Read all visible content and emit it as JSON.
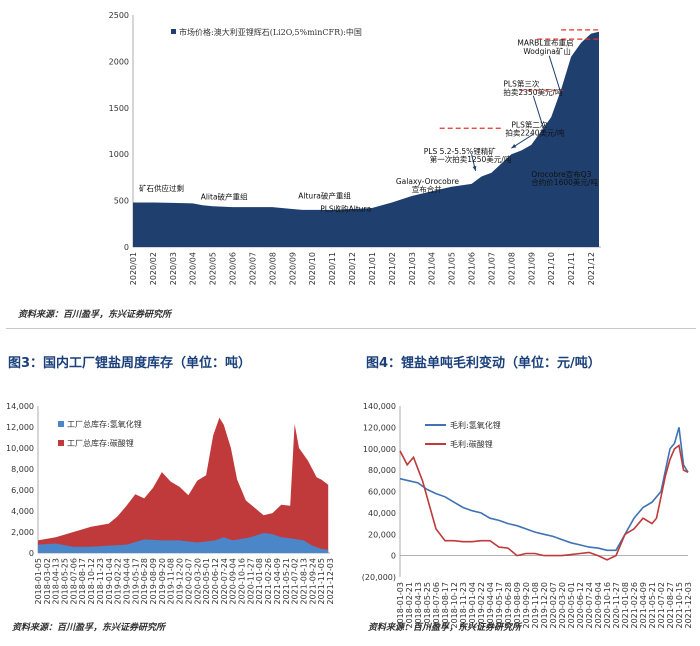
{
  "source_text": "资料来源：百川盈孚，东兴证券研究所",
  "fig3_title": "图3：国内工厂锂盐周度库存（单位：吨）",
  "fig4_title": "图4：锂盐单吨毛利变动（单位：元/吨）",
  "chart_data": [
    {
      "type": "area",
      "legend_placement": "top-left",
      "ylim": [
        0,
        2500
      ],
      "yticks": [
        0,
        500,
        1000,
        1500,
        2000,
        2500
      ],
      "categories": [
        "2020/01",
        "2020/02",
        "2020/03",
        "2020/04",
        "2020/05",
        "2020/06",
        "2020/07",
        "2020/08",
        "2020/09",
        "2020/10",
        "2020/11",
        "2020/12",
        "2021/01",
        "2021/02",
        "2021/03",
        "2021/04",
        "2021/05",
        "2021/06",
        "2021/07",
        "2021/08",
        "2021/09",
        "2021/10",
        "2021/11",
        "2021/12"
      ],
      "series": [
        {
          "name": "市场价格:澳大利亚锂辉石(Li2O,5%minCFR):中国",
          "color": "#1f3f6e",
          "x": [
            0,
            1,
            2,
            3,
            3.5,
            4,
            5,
            6,
            7,
            8,
            8.5,
            9,
            10,
            11,
            12,
            13,
            14,
            15,
            16,
            17,
            17.5,
            18,
            18.5,
            19,
            19.5,
            20,
            20.5,
            21,
            21.5,
            22,
            22.5,
            23,
            23.4
          ],
          "values": [
            480,
            480,
            475,
            470,
            450,
            440,
            430,
            430,
            430,
            410,
            400,
            400,
            400,
            410,
            420,
            480,
            550,
            600,
            650,
            680,
            760,
            800,
            900,
            1000,
            1040,
            1100,
            1250,
            1400,
            1700,
            2050,
            2200,
            2300,
            2320
          ]
        }
      ],
      "annotations": [
        {
          "text": "矿石供应过剩",
          "x": 0.3,
          "y": 605
        },
        {
          "text": "Alita破产重组",
          "x": 3.4,
          "y": 510
        },
        {
          "text": "Altura破产重组",
          "x": 8.3,
          "y": 520
        },
        {
          "text": "PLS收购Altura",
          "x": 9.4,
          "y": 380
        },
        {
          "text": "Galaxy-Orocobre",
          "x": 13.2,
          "y": 680
        },
        {
          "text": "宣布合并",
          "x": 14.0,
          "y": 590
        },
        {
          "text": "PLS 5.2-5.5%锂精矿",
          "x": 14.6,
          "y": 1000
        },
        {
          "text": "第一次拍卖1250美元/吨",
          "x": 14.9,
          "y": 915
        },
        {
          "text": "Orocobre宣布Q3",
          "x": 20.0,
          "y": 755
        },
        {
          "text": "合约价1600美元/吨",
          "x": 20.0,
          "y": 670
        },
        {
          "text": "PLS第二次",
          "x": 19.0,
          "y": 1290
        },
        {
          "text": "拍卖2240美元/吨",
          "x": 18.7,
          "y": 1200
        },
        {
          "text": "PLS第三次",
          "x": 18.6,
          "y": 1730
        },
        {
          "text": "拍卖2350美元/吨",
          "x": 18.6,
          "y": 1640
        },
        {
          "text": "MARBL宣布重启",
          "x": 19.3,
          "y": 2170
        },
        {
          "text": "Wodgina矿山",
          "x": 19.6,
          "y": 2080
        }
      ],
      "dashed_lines": [
        {
          "x": [
            15.4,
            18.5
          ],
          "y": 1280
        },
        {
          "x": [
            19.4,
            21.6
          ],
          "y": 1690
        },
        {
          "x": [
            20.3,
            23.5
          ],
          "y": 2240
        },
        {
          "x": [
            21.5,
            23.5
          ],
          "y": 2340
        }
      ],
      "arrows": [
        {
          "x": [
            17.0,
            17.2
          ],
          "y": [
            1000,
            820
          ]
        },
        {
          "x": [
            20.1,
            19.0
          ],
          "y": [
            1215,
            1065
          ]
        },
        {
          "x": [
            20.1,
            20.8
          ],
          "y": [
            1630,
            1150
          ]
        },
        {
          "x": [
            20.9,
            21.6
          ],
          "y": [
            2060,
            1580
          ]
        }
      ]
    },
    {
      "type": "area",
      "legend_placement": "top-left",
      "ylim": [
        0,
        14000
      ],
      "yticks": [
        0,
        2000,
        4000,
        6000,
        8000,
        10000,
        12000,
        14000
      ],
      "ytick_labels": [
        "0",
        "2,000",
        "4,000",
        "6,000",
        "8,000",
        "10,000",
        "12,000",
        "14,000"
      ],
      "categories": [
        "2018-01-05",
        "2018-03-02",
        "2018-04-13",
        "2018-05-25",
        "2018-07-06",
        "2018-08-17",
        "2018-10-12",
        "2018-11-23",
        "2019-01-04",
        "2019-02-22",
        "2019-04-04",
        "2019-05-17",
        "2019-06-28",
        "2019-08-09",
        "2019-09-20",
        "2019-11-08",
        "2019-12-20",
        "2020-02-07",
        "2020-03-20",
        "2020-05-01",
        "2020-06-12",
        "2020-07-24",
        "2020-09-04",
        "2020-10-16",
        "2020-11-27",
        "2021-01-08",
        "2021-02-26",
        "2021-04-09",
        "2021-05-21",
        "2021-07-02",
        "2021-08-13",
        "2021-09-24",
        "2021-11-05",
        "2021-12-03"
      ],
      "series": [
        {
          "name": "工厂总库存:碳酸锂",
          "color": "#c0393b",
          "x": [
            0,
            2,
            4,
            6,
            8,
            9,
            10,
            11,
            12,
            13,
            14,
            15,
            16,
            17,
            18,
            19,
            19.8,
            20.5,
            21,
            21.8,
            22.5,
            23.5,
            24.5,
            25.5,
            26.5,
            27.5,
            28.5,
            29,
            29.5,
            30.5,
            31.5,
            32,
            32.8
          ],
          "values": [
            1200,
            1500,
            2000,
            2500,
            2800,
            3500,
            4500,
            5600,
            5200,
            6200,
            7700,
            6800,
            6300,
            5500,
            6900,
            7400,
            11200,
            12900,
            12200,
            10000,
            7000,
            5000,
            4300,
            3600,
            3800,
            4600,
            4500,
            12300,
            10000,
            8800,
            7200,
            7000,
            6500
          ]
        },
        {
          "name": "工厂总库存:氢氧化锂",
          "color": "#4a86c8",
          "x": [
            0,
            2,
            4,
            6,
            8,
            10,
            12,
            14,
            16,
            18,
            20,
            21,
            22,
            24,
            25.5,
            26.5,
            27.5,
            28.5,
            30,
            31,
            32,
            32.8
          ],
          "values": [
            800,
            900,
            600,
            600,
            700,
            800,
            1300,
            1200,
            1200,
            1000,
            1200,
            1500,
            1200,
            1500,
            1900,
            1800,
            1500,
            1400,
            1200,
            700,
            400,
            300
          ]
        }
      ]
    },
    {
      "type": "line",
      "legend_placement": "top-left",
      "ylim": [
        -20000,
        140000
      ],
      "yticks": [
        -20000,
        0,
        20000,
        40000,
        60000,
        80000,
        100000,
        120000,
        140000
      ],
      "ytick_labels": [
        "(20,000)",
        "0",
        "20,000",
        "40,000",
        "60,000",
        "80,000",
        "100,000",
        "120,000",
        "140,000"
      ],
      "categories": [
        "2018-01-03",
        "2018-02-21",
        "2018-04-13",
        "2018-05-25",
        "2018-07-06",
        "2018-08-17",
        "2018-10-12",
        "2018-11-23",
        "2019-01-04",
        "2019-02-22",
        "2019-04-04",
        "2019-05-17",
        "2019-06-28",
        "2019-08-09",
        "2019-09-20",
        "2019-11-08",
        "2019-12-20",
        "2020-02-07",
        "2020-03-20",
        "2020-05-01",
        "2020-06-12",
        "2020-07-24",
        "2020-09-04",
        "2020-10-16",
        "2020-11-27",
        "2021-01-08",
        "2021-02-26",
        "2021-04-09",
        "2021-05-21",
        "2021-07-02",
        "2021-08-27",
        "2021-10-15",
        "2021-12-03"
      ],
      "series": [
        {
          "name": "毛利:氢氧化锂",
          "color": "#3f73b5",
          "x": [
            0,
            1,
            2,
            3,
            4,
            5,
            6,
            7,
            8,
            9,
            10,
            11,
            12,
            13,
            14,
            15,
            16,
            17,
            18,
            19,
            20,
            21,
            22,
            23,
            24,
            25,
            26,
            27,
            28,
            29,
            29.5,
            30,
            30.5,
            31,
            31.5,
            32
          ],
          "values": [
            72000,
            70000,
            68000,
            62000,
            58000,
            55000,
            50000,
            45000,
            42000,
            40000,
            35000,
            33000,
            30000,
            28000,
            25000,
            22000,
            20000,
            18000,
            15000,
            12000,
            10000,
            8000,
            7000,
            5000,
            5000,
            20000,
            35000,
            45000,
            50000,
            60000,
            80000,
            100000,
            105000,
            120000,
            85000,
            78000
          ]
        },
        {
          "name": "毛利:碳酸锂",
          "color": "#c0393b",
          "x": [
            0,
            0.8,
            1.5,
            2.5,
            3.5,
            4,
            5,
            6,
            7,
            8,
            9,
            10,
            11,
            12,
            13,
            14,
            15,
            16,
            17,
            18,
            19,
            20,
            21,
            22,
            23,
            24,
            25,
            26,
            27,
            28,
            28.5,
            29,
            29.5,
            30,
            30.5,
            31,
            31.5,
            32
          ],
          "values": [
            98000,
            85000,
            92000,
            70000,
            40000,
            25000,
            14000,
            14000,
            13000,
            13000,
            14000,
            14000,
            8000,
            7000,
            0,
            2000,
            2000,
            0,
            0,
            0,
            1000,
            2000,
            3000,
            0,
            -4000,
            0,
            20000,
            25000,
            35000,
            30000,
            35000,
            55000,
            75000,
            90000,
            100000,
            103000,
            80000,
            78000
          ]
        }
      ]
    }
  ]
}
